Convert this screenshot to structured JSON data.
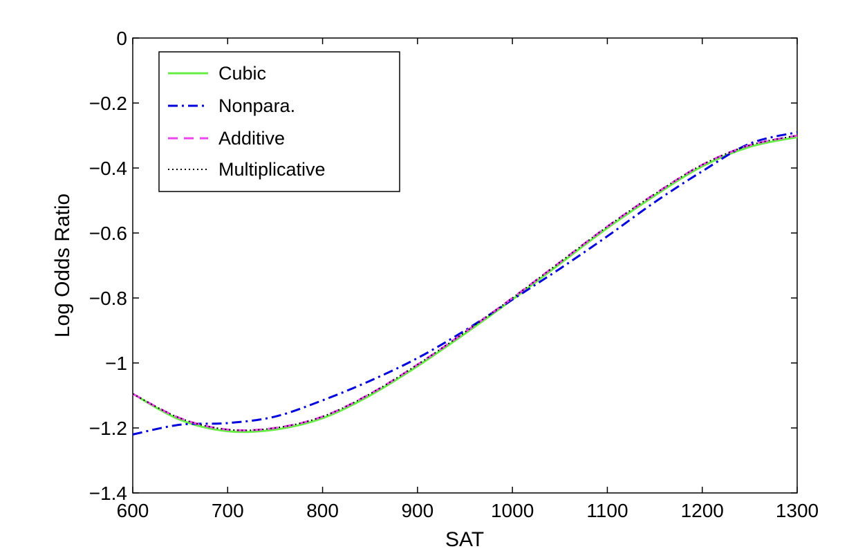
{
  "chart_data": {
    "type": "line",
    "title": "",
    "xlabel": "SAT",
    "ylabel": "Log Odds Ratio",
    "xlim": [
      600,
      1300
    ],
    "ylim": [
      -1.4,
      0
    ],
    "xticks": [
      600,
      700,
      800,
      900,
      1000,
      1100,
      1200,
      1300
    ],
    "yticks": [
      0,
      -0.2,
      -0.4,
      -0.6,
      -0.8,
      -1,
      -1.2,
      -1.4
    ],
    "xtick_labels": [
      "600",
      "700",
      "800",
      "900",
      "1000",
      "1100",
      "1200",
      "1300"
    ],
    "ytick_labels": [
      "0",
      "−0.2",
      "−0.4",
      "−0.6",
      "−0.8",
      "−1",
      "−1.2",
      "−1.4"
    ],
    "grid": false,
    "legend_position": "top-left",
    "x": [
      600,
      650,
      700,
      750,
      800,
      850,
      900,
      950,
      1000,
      1050,
      1100,
      1150,
      1200,
      1250,
      1300
    ],
    "series": [
      {
        "name": "Cubic",
        "color": "#66ee44",
        "style": "solid",
        "values": [
          -1.095,
          -1.175,
          -1.21,
          -1.205,
          -1.17,
          -1.1,
          -1.01,
          -0.91,
          -0.805,
          -0.695,
          -0.585,
          -0.485,
          -0.395,
          -0.335,
          -0.305
        ]
      },
      {
        "name": "Nonpara.",
        "color": "#0000dd",
        "style": "dashdot",
        "values": [
          -1.22,
          -1.19,
          -1.185,
          -1.165,
          -1.115,
          -1.055,
          -0.985,
          -0.9,
          -0.805,
          -0.71,
          -0.61,
          -0.505,
          -0.41,
          -0.325,
          -0.29
        ]
      },
      {
        "name": "Additive",
        "color": "#ee44ee",
        "style": "dashed",
        "values": [
          -1.095,
          -1.17,
          -1.205,
          -1.2,
          -1.165,
          -1.095,
          -1.005,
          -0.905,
          -0.8,
          -0.69,
          -0.58,
          -0.48,
          -0.39,
          -0.33,
          -0.3
        ]
      },
      {
        "name": "Multiplicative",
        "color": "#000000",
        "style": "dotted",
        "values": [
          -1.095,
          -1.17,
          -1.205,
          -1.2,
          -1.165,
          -1.095,
          -1.005,
          -0.905,
          -0.8,
          -0.69,
          -0.58,
          -0.48,
          -0.39,
          -0.33,
          -0.3
        ]
      }
    ]
  }
}
